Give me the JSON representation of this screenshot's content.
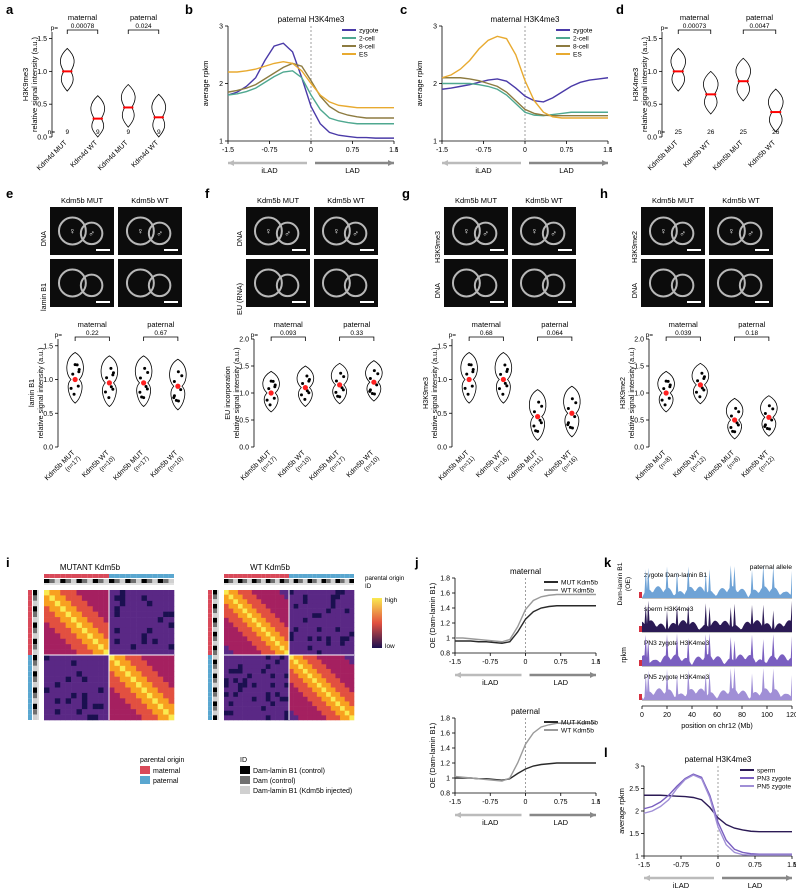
{
  "panels": {
    "a": {
      "label": "a"
    },
    "b": {
      "label": "b"
    },
    "c": {
      "label": "c"
    },
    "d": {
      "label": "d"
    },
    "e": {
      "label": "e"
    },
    "f": {
      "label": "f"
    },
    "g": {
      "label": "g"
    },
    "h": {
      "label": "h"
    },
    "i": {
      "label": "i"
    },
    "j": {
      "label": "j"
    },
    "k": {
      "label": "k"
    },
    "l": {
      "label": "l"
    }
  },
  "violin_a": {
    "type": "violin",
    "ylabel_line1": "H3K9me3",
    "ylabel_line2": "relative signal intensity (a.u.)",
    "ylim": [
      0,
      1.6
    ],
    "yticks": [
      0,
      0.5,
      1.0,
      1.5
    ],
    "groups": [
      "maternal",
      "paternal"
    ],
    "p_maternal": "0.00078",
    "p_paternal": "0.024",
    "n_prefix": "n=",
    "categories": [
      "Kdm4d MUT",
      "Kdm4d WT",
      "Kdm4d MUT",
      "Kdm4d WT"
    ],
    "n": [
      "9",
      "9",
      "9",
      "9"
    ],
    "medians": [
      1.0,
      0.28,
      0.45,
      0.3
    ],
    "violin_stroke": "#000000",
    "median_color": "#ff0000",
    "fontsize_label": 8,
    "fontsize_p": 7
  },
  "line_b": {
    "type": "line",
    "title": "paternal H3K4me3",
    "ylabel": "average rpkm",
    "xlabel_left": "iLAD",
    "xlabel_right": "LAD",
    "xlim": [
      -1.5,
      1.5
    ],
    "xticks": [
      -1.5,
      -0.75,
      0,
      0.75,
      1.5
    ],
    "ylim": [
      1,
      3
    ],
    "yticks": [
      1,
      2,
      3
    ],
    "dash_x": 0,
    "legend": [
      "zygote",
      "2-cell",
      "8-cell",
      "ES"
    ],
    "colors": {
      "zygote": "#4a3aa8",
      "2-cell": "#4fa890",
      "8-cell": "#8d7b40",
      "ES": "#e8aa30"
    },
    "series": {
      "zygote": [
        1.8,
        1.85,
        1.95,
        2.1,
        2.4,
        2.65,
        2.7,
        2.55,
        2.1,
        1.6,
        1.3,
        1.15,
        1.1,
        1.08,
        1.06,
        1.06,
        1.05,
        1.05,
        1.05
      ],
      "2-cell": [
        1.8,
        1.82,
        1.86,
        1.92,
        2.02,
        2.12,
        2.2,
        2.22,
        2.1,
        1.8,
        1.55,
        1.4,
        1.35,
        1.32,
        1.3,
        1.3,
        1.3,
        1.3,
        1.3
      ],
      "8-cell": [
        1.85,
        1.88,
        1.92,
        1.98,
        2.08,
        2.18,
        2.28,
        2.35,
        2.3,
        2.05,
        1.78,
        1.6,
        1.5,
        1.45,
        1.42,
        1.4,
        1.4,
        1.4,
        1.4
      ],
      "ES": [
        2.2,
        2.2,
        2.22,
        2.25,
        2.3,
        2.35,
        2.38,
        2.35,
        2.22,
        2.0,
        1.8,
        1.68,
        1.62,
        1.6,
        1.58,
        1.58,
        1.58,
        1.58,
        1.58
      ]
    },
    "line_width": 1.4,
    "dash_color": "#888888"
  },
  "line_c": {
    "type": "line",
    "title": "maternal H3K4me3",
    "ylabel": "average rpkm",
    "xlabel_left": "iLAD",
    "xlabel_right": "LAD",
    "xlim": [
      -1.5,
      1.5
    ],
    "xticks": [
      -1.5,
      -0.75,
      0,
      0.75,
      1.5
    ],
    "ylim": [
      1,
      3
    ],
    "yticks": [
      1,
      2,
      3
    ],
    "legend": [
      "zygote",
      "2-cell",
      "8-cell",
      "ES"
    ],
    "colors": {
      "zygote": "#4a3aa8",
      "2-cell": "#4fa890",
      "8-cell": "#8d7b40",
      "ES": "#e8aa30"
    },
    "series": {
      "zygote": [
        1.9,
        1.92,
        1.95,
        1.98,
        2.02,
        2.06,
        2.08,
        2.04,
        1.92,
        1.78,
        1.7,
        1.68,
        1.75,
        1.85,
        1.95,
        2.02,
        2.06,
        2.08,
        2.1
      ],
      "2-cell": [
        2.0,
        2.0,
        2.0,
        2.0,
        1.98,
        1.95,
        1.9,
        1.8,
        1.65,
        1.5,
        1.45,
        1.44,
        1.46,
        1.48,
        1.5,
        1.5,
        1.5,
        1.5,
        1.5
      ],
      "8-cell": [
        2.1,
        2.1,
        2.1,
        2.08,
        2.05,
        2.0,
        1.95,
        1.85,
        1.7,
        1.55,
        1.48,
        1.45,
        1.44,
        1.44,
        1.44,
        1.44,
        1.44,
        1.44,
        1.44
      ],
      "ES": [
        2.1,
        2.15,
        2.25,
        2.4,
        2.6,
        2.75,
        2.82,
        2.78,
        2.5,
        2.05,
        1.7,
        1.5,
        1.42,
        1.4,
        1.4,
        1.4,
        1.4,
        1.4,
        1.4
      ]
    }
  },
  "violin_d": {
    "type": "violin",
    "ylabel_line1": "H3K4me3",
    "ylabel_line2": "relative signal intensity (a.u.)",
    "ylim": [
      0,
      1.6
    ],
    "yticks": [
      0,
      0.5,
      1.0,
      1.5
    ],
    "groups": [
      "maternal",
      "paternal"
    ],
    "p_maternal": "0.00073",
    "p_paternal": "0.0047",
    "n_prefix": "n=",
    "categories": [
      "Kdm5b MUT",
      "Kdm5b WT",
      "Kdm5b MUT",
      "Kdm5b WT"
    ],
    "n": [
      "25",
      "26",
      "25",
      "26"
    ],
    "medians": [
      1.0,
      0.65,
      0.85,
      0.38
    ]
  },
  "panel_e": {
    "img_labels_top": [
      "Kdm5b MUT",
      "Kdm5b WT"
    ],
    "row_labels": [
      "DNA",
      "lamin B1"
    ],
    "img_symbols": [
      "♀",
      "♂"
    ],
    "violin": {
      "ylabel_line1": "lamin B1",
      "ylabel_line2": "relative signal intensity (a.u.)",
      "ylim": [
        0,
        1.6
      ],
      "yticks": [
        0,
        0.5,
        1.0,
        1.5
      ],
      "groups": [
        "maternal",
        "paternal"
      ],
      "p_maternal": "0.22",
      "p_paternal": "0.67",
      "categories": [
        "Kdm5b MUT",
        "Kdm5b WT",
        "Kdm5b MUT",
        "Kdm5b WT"
      ],
      "n": [
        "(n=17)",
        "(n=10)",
        "(n=17)",
        "(n=10)"
      ],
      "medians": [
        1.0,
        0.95,
        0.95,
        0.9
      ]
    }
  },
  "panel_f": {
    "img_labels_top": [
      "Kdm5b MUT",
      "Kdm5b WT"
    ],
    "row_labels": [
      "DNA",
      "EU (RNA)"
    ],
    "violin": {
      "ylabel_line1": "EU incorporation",
      "ylabel_line2": "relative signal intensity (a.u.)",
      "ylim": [
        0,
        2.0
      ],
      "yticks": [
        0,
        0.5,
        1.0,
        1.5,
        2.0
      ],
      "groups": [
        "maternal",
        "paternal"
      ],
      "p_maternal": "0.093",
      "p_paternal": "0.33",
      "categories": [
        "Kdm5b MUT",
        "Kdm5b WT",
        "Kdm5b MUT",
        "Kdm5b WT"
      ],
      "n": [
        "(n=17)",
        "(n=10)",
        "(n=17)",
        "(n=10)"
      ],
      "medians": [
        1.0,
        1.1,
        1.15,
        1.2
      ]
    }
  },
  "panel_g": {
    "img_labels_top": [
      "Kdm5b MUT",
      "Kdm5b WT"
    ],
    "row_labels": [
      "H3K9me3",
      "DNA"
    ],
    "violin": {
      "ylabel_line1": "H3K9me3",
      "ylabel_line2": "relative signal intensity (a.u.)",
      "ylim": [
        0,
        1.6
      ],
      "yticks": [
        0,
        0.5,
        1.0,
        1.5
      ],
      "groups": [
        "maternal",
        "paternal"
      ],
      "p_maternal": "0.68",
      "p_paternal": "0.064",
      "categories": [
        "Kdm5b MUT",
        "Kdm5b WT",
        "Kdm5b MUT",
        "Kdm5b WT"
      ],
      "n": [
        "(n=11)",
        "(n=16)",
        "(n=11)",
        "(n=16)"
      ],
      "medians": [
        1.0,
        1.0,
        0.45,
        0.5
      ]
    }
  },
  "panel_h": {
    "img_labels_top": [
      "Kdm5b MUT",
      "Kdm5b WT"
    ],
    "row_labels": [
      "H3K9me2",
      "DNA"
    ],
    "violin": {
      "ylabel_line1": "H3K9me2",
      "ylabel_line2": "relative signal intensity (a.u.)",
      "ylim": [
        0,
        2.0
      ],
      "yticks": [
        0,
        0.5,
        1.0,
        1.5,
        2.0
      ],
      "groups": [
        "maternal",
        "paternal"
      ],
      "p_maternal": "0.039",
      "p_paternal": "0.18",
      "categories": [
        "Kdm5b MUT",
        "Kdm5b WT",
        "Kdm5b MUT",
        "Kdm5b WT"
      ],
      "n": [
        "(n=8)",
        "(n=12)",
        "(n=8)",
        "(n=12)"
      ],
      "medians": [
        1.0,
        1.15,
        0.5,
        0.55
      ]
    }
  },
  "heatmap_i": {
    "type": "heatmap",
    "titles": [
      "MUTANT Kdm5b",
      "WT Kdm5b"
    ],
    "top_legend": [
      "parental origin",
      "ID"
    ],
    "colorbar_labels": [
      "high",
      "low"
    ],
    "colormap": [
      "#1b1050",
      "#5a2885",
      "#a52060",
      "#e25040",
      "#f8a020",
      "#faea50"
    ],
    "legend_parental": {
      "label": "parental origin",
      "maternal": "maternal",
      "paternal": "paternal",
      "maternal_color": "#d94a5a",
      "paternal_color": "#5aa7d0"
    },
    "legend_ID": {
      "label": "ID",
      "items": [
        "Dam-lamin B1 (control)",
        "Dam (control)",
        "Dam-lamin B1 (Kdm5b injected)"
      ],
      "colors": [
        "#000000",
        "#707070",
        "#d0d0d0"
      ]
    }
  },
  "line_j": {
    "type": "line",
    "plots": [
      "maternal",
      "paternal"
    ],
    "ylabel": "OE (Dam-lamin B1)",
    "xlabel_left": "iLAD",
    "xlabel_right": "LAD",
    "xlim": [
      -1.5,
      1.5
    ],
    "xticks": [
      -1.5,
      -0.75,
      0,
      0.75,
      1.5
    ],
    "ylim": [
      0.8,
      1.8
    ],
    "yticks": [
      0.8,
      1.0,
      1.2,
      1.4,
      1.6,
      1.8
    ],
    "legend": [
      "MUT Kdm5b",
      "WT Kdm5b"
    ],
    "colors": {
      "MUT": "#2a2a2a",
      "WT": "#9a9a9a"
    },
    "maternal": {
      "MUT": [
        0.96,
        0.96,
        0.96,
        0.95,
        0.95,
        0.94,
        0.93,
        0.95,
        1.08,
        1.25,
        1.35,
        1.4,
        1.42,
        1.43,
        1.43,
        1.43,
        1.43,
        1.43,
        1.43
      ],
      "WT": [
        1.0,
        1.0,
        0.99,
        0.98,
        0.97,
        0.96,
        0.95,
        0.98,
        1.15,
        1.38,
        1.5,
        1.55,
        1.57,
        1.58,
        1.58,
        1.58,
        1.58,
        1.58,
        1.58
      ]
    },
    "paternal": {
      "MUT": [
        1.0,
        1.0,
        1.0,
        0.99,
        0.99,
        0.98,
        0.97,
        0.99,
        1.06,
        1.12,
        1.16,
        1.18,
        1.19,
        1.2,
        1.2,
        1.2,
        1.2,
        1.2,
        1.2
      ],
      "WT": [
        1.02,
        1.01,
        1.0,
        0.99,
        0.98,
        0.97,
        0.96,
        1.0,
        1.2,
        1.45,
        1.6,
        1.68,
        1.71,
        1.73,
        1.73,
        1.73,
        1.73,
        1.73,
        1.73
      ]
    }
  },
  "tracks_k": {
    "type": "tracks",
    "ylabel_left_1": "Dam-lamin B1",
    "ylabel_left_2": "(OE)",
    "ylabel_left_3": "rpkm",
    "right_label": "paternal allele",
    "xlabel": "position on chr12 (Mb)",
    "xlim": [
      0,
      120
    ],
    "xticks": [
      0,
      20,
      40,
      60,
      80,
      100,
      120
    ],
    "tracks": [
      {
        "name": "zygote Dam-lamin B1",
        "color": "#6fa3d6"
      },
      {
        "name": "sperm H3K4me3",
        "color": "#2b1a55"
      },
      {
        "name": "PN3 zygote H3K4me3",
        "color": "#7a5fc0"
      },
      {
        "name": "PN5 zygote H3K4me3",
        "color": "#a08fd6"
      }
    ],
    "red_mark_color": "#d53040"
  },
  "line_l": {
    "type": "line",
    "title": "paternal H3K4me3",
    "ylabel": "average rpkm",
    "xlabel_left": "iLAD",
    "xlabel_right": "LAD",
    "xlim": [
      -1.5,
      1.5
    ],
    "xticks": [
      -1.5,
      -0.75,
      0,
      0.75,
      1.5
    ],
    "ylim": [
      1,
      3
    ],
    "yticks": [
      1,
      1.5,
      2,
      2.5,
      3
    ],
    "legend": [
      "sperm",
      "PN3 zygote",
      "PN5 zygote"
    ],
    "colors": {
      "sperm": "#2b1a55",
      "PN3": "#7a5fc0",
      "PN5": "#a08fd6"
    },
    "series": {
      "sperm": [
        2.35,
        2.35,
        2.35,
        2.34,
        2.33,
        2.32,
        2.3,
        2.25,
        2.08,
        1.85,
        1.7,
        1.62,
        1.58,
        1.55,
        1.54,
        1.54,
        1.54,
        1.54,
        1.54
      ],
      "PN3": [
        2.05,
        2.1,
        2.2,
        2.35,
        2.55,
        2.72,
        2.82,
        2.75,
        2.35,
        1.75,
        1.35,
        1.15,
        1.08,
        1.05,
        1.04,
        1.04,
        1.04,
        1.04,
        1.04
      ],
      "PN5": [
        1.95,
        2.0,
        2.1,
        2.25,
        2.5,
        2.7,
        2.8,
        2.72,
        2.3,
        1.65,
        1.25,
        1.08,
        1.03,
        1.02,
        1.02,
        1.02,
        1.02,
        1.02,
        1.02
      ]
    }
  },
  "shared": {
    "p_prefix": "p="
  }
}
